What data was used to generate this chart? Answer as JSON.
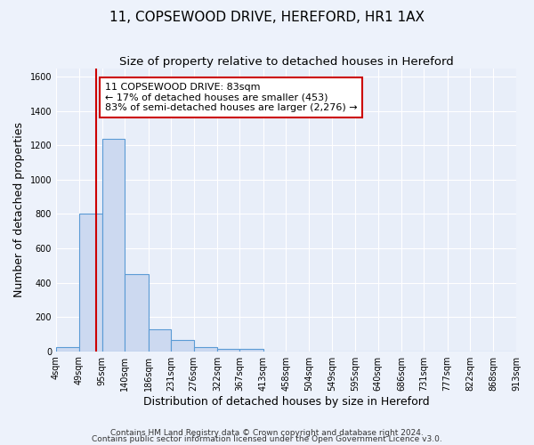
{
  "title1": "11, COPSEWOOD DRIVE, HEREFORD, HR1 1AX",
  "title2": "Size of property relative to detached houses in Hereford",
  "xlabel": "Distribution of detached houses by size in Hereford",
  "ylabel": "Number of detached properties",
  "bin_edges": [
    4,
    49,
    95,
    140,
    186,
    231,
    276,
    322,
    367,
    413,
    458,
    504,
    549,
    595,
    640,
    686,
    731,
    777,
    822,
    868,
    913
  ],
  "bar_heights": [
    25,
    800,
    1240,
    450,
    130,
    65,
    25,
    15,
    15,
    0,
    0,
    0,
    0,
    0,
    0,
    0,
    0,
    0,
    0,
    0
  ],
  "bar_color": "#ccd9f0",
  "bar_edge_color": "#5b9bd5",
  "bar_edge_width": 0.8,
  "red_line_x": 83,
  "red_line_color": "#cc0000",
  "annotation_line1": "11 COPSEWOOD DRIVE: 83sqm",
  "annotation_line2": "← 17% of detached houses are smaller (453)",
  "annotation_line3": "83% of semi-detached houses are larger (2,276) →",
  "ylim": [
    0,
    1650
  ],
  "xlim": [
    4,
    913
  ],
  "fig_background_color": "#edf2fb",
  "plot_background_color": "#e8eef9",
  "grid_color": "#ffffff",
  "footer1": "Contains HM Land Registry data © Crown copyright and database right 2024.",
  "footer2": "Contains public sector information licensed under the Open Government Licence v3.0.",
  "title1_fontsize": 11,
  "title2_fontsize": 9.5,
  "xlabel_fontsize": 9,
  "ylabel_fontsize": 9,
  "tick_fontsize": 7,
  "annotation_fontsize": 8,
  "footer_fontsize": 6.5
}
